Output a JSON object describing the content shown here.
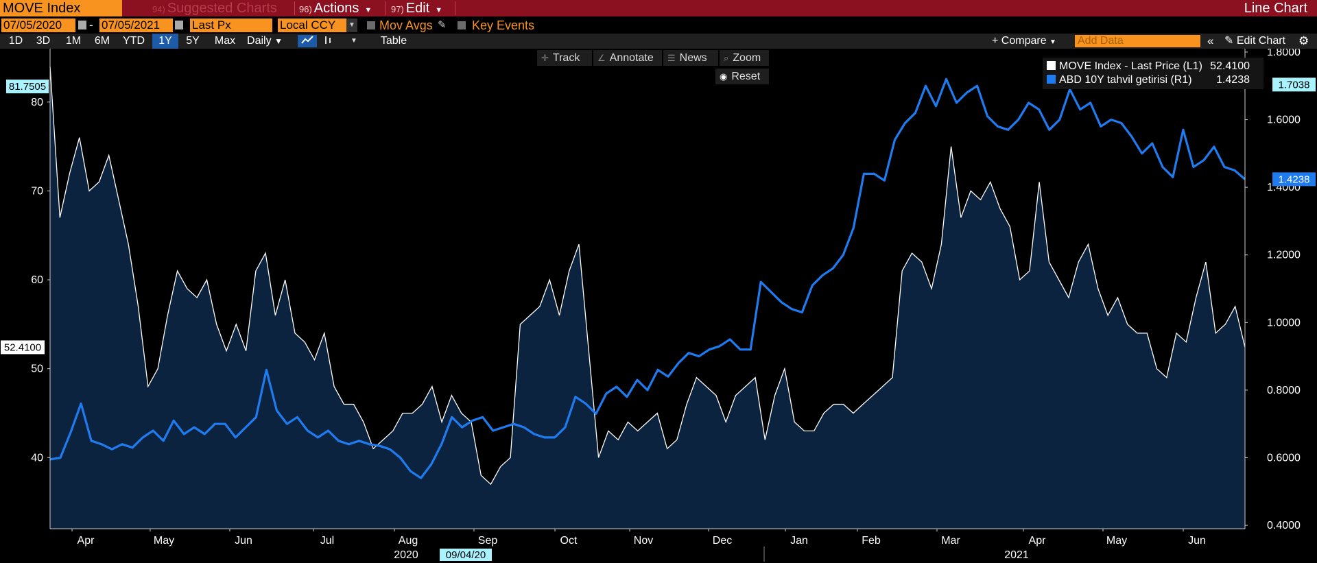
{
  "toolbar": {
    "ticker": "MOVE Index",
    "menu_suggested": {
      "num": "94)",
      "label": "Suggested Charts"
    },
    "menu_actions": {
      "num": "96)",
      "label": "Actions"
    },
    "menu_edit": {
      "num": "97)",
      "label": "Edit"
    },
    "chart_type": "Line Chart",
    "start_date": "07/05/2020",
    "date_separator": "-",
    "end_date": "07/05/2021",
    "price_field": "Last Px",
    "currency": "Local CCY",
    "mov_avgs": "Mov Avgs",
    "key_events": "Key Events",
    "periods": [
      "1D",
      "3D",
      "1M",
      "6M",
      "YTD",
      "1Y",
      "5Y",
      "Max"
    ],
    "active_period": "1Y",
    "frequency": "Daily",
    "table": "Table",
    "compare": "+ Compare",
    "add_data_placeholder": "Add Data",
    "edit_chart": "Edit Chart",
    "track": "Track",
    "annotate": "Annotate",
    "news": "News",
    "zoom": "Zoom",
    "reset": "Reset"
  },
  "colors": {
    "move_line": "#ffffff",
    "move_fill": "#0c2340",
    "yield_line": "#1f7cf0",
    "title_bar": "#8b1020",
    "accent_orange": "#f7931e",
    "active_blue": "#1d5aa8"
  },
  "chart_data": {
    "type": "line",
    "x_start": "2020-07-05",
    "x_end": "2021-07-05",
    "month_labels": [
      "Apr",
      "May",
      "Jun",
      "Jul",
      "Aug",
      "Sep",
      "Oct",
      "Nov",
      "Dec",
      "Jan",
      "Feb",
      "Mar",
      "Apr",
      "May",
      "Jun"
    ],
    "year_labels": [
      "2020",
      "2021"
    ],
    "cursor_date_label": "09/04/20",
    "left_axis": {
      "ticks": [
        "40",
        "50",
        "60",
        "70",
        "80"
      ],
      "ylim": [
        32,
        86
      ]
    },
    "right_axis": {
      "ticks": [
        "0.4000",
        "0.6000",
        "0.8000",
        "1.0000",
        "1.2000",
        "1.4000",
        "1.6000",
        "1.8000"
      ],
      "ylim": [
        0.39,
        1.81
      ]
    },
    "legend_position": "top-right",
    "grid": false,
    "series": [
      {
        "name": "MOVE Index - Last Price (L1)",
        "last_value": "52.4100",
        "axis": "left",
        "style": "area",
        "max_label": "81.7505",
        "values": [
          84,
          67,
          72,
          76,
          70,
          71,
          74,
          69,
          64,
          57,
          48,
          50,
          56,
          61,
          59,
          58,
          60,
          55,
          52,
          55,
          52,
          61,
          63,
          56,
          60,
          54,
          53,
          51,
          54,
          48,
          46,
          46,
          44,
          41,
          42,
          43,
          45,
          45,
          46,
          48,
          44,
          47,
          45,
          44,
          38,
          37,
          39,
          40,
          55,
          56,
          57,
          60,
          56,
          61,
          64,
          52,
          40,
          43,
          42,
          44,
          43,
          44,
          45,
          41,
          42,
          46,
          49,
          48,
          47,
          44,
          47,
          48,
          49,
          42,
          47,
          50,
          44,
          43,
          43,
          45,
          46,
          46,
          45,
          46,
          47,
          48,
          49,
          61,
          63,
          62,
          59,
          64,
          75,
          67,
          70,
          69,
          71,
          68,
          66,
          60,
          61,
          71,
          62,
          60,
          58,
          62,
          64,
          59,
          56,
          58,
          55,
          54,
          54,
          50,
          49,
          54,
          53,
          58,
          62,
          54,
          55,
          57,
          52.41
        ]
      },
      {
        "name": "ABD 10Y tahvil getirisi (R1)",
        "last_value": "1.4238",
        "axis": "right",
        "style": "line",
        "max_label": "1.7038",
        "values": [
          0.595,
          0.6,
          0.675,
          0.76,
          0.65,
          0.64,
          0.625,
          0.64,
          0.63,
          0.66,
          0.68,
          0.65,
          0.71,
          0.67,
          0.69,
          0.67,
          0.7,
          0.7,
          0.66,
          0.69,
          0.72,
          0.86,
          0.74,
          0.7,
          0.72,
          0.68,
          0.66,
          0.68,
          0.65,
          0.64,
          0.65,
          0.64,
          0.635,
          0.625,
          0.6,
          0.56,
          0.54,
          0.58,
          0.64,
          0.72,
          0.69,
          0.71,
          0.72,
          0.68,
          0.69,
          0.7,
          0.69,
          0.67,
          0.66,
          0.66,
          0.69,
          0.78,
          0.76,
          0.73,
          0.79,
          0.81,
          0.78,
          0.83,
          0.8,
          0.86,
          0.84,
          0.88,
          0.91,
          0.9,
          0.92,
          0.93,
          0.95,
          0.92,
          0.92,
          1.12,
          1.09,
          1.06,
          1.04,
          1.03,
          1.11,
          1.14,
          1.16,
          1.2,
          1.28,
          1.44,
          1.44,
          1.42,
          1.54,
          1.59,
          1.62,
          1.7,
          1.64,
          1.72,
          1.65,
          1.68,
          1.7,
          1.61,
          1.58,
          1.57,
          1.6,
          1.65,
          1.63,
          1.57,
          1.6,
          1.69,
          1.63,
          1.65,
          1.58,
          1.6,
          1.59,
          1.55,
          1.5,
          1.53,
          1.46,
          1.43,
          1.57,
          1.46,
          1.48,
          1.52,
          1.46,
          1.45,
          1.4238
        ]
      }
    ]
  }
}
